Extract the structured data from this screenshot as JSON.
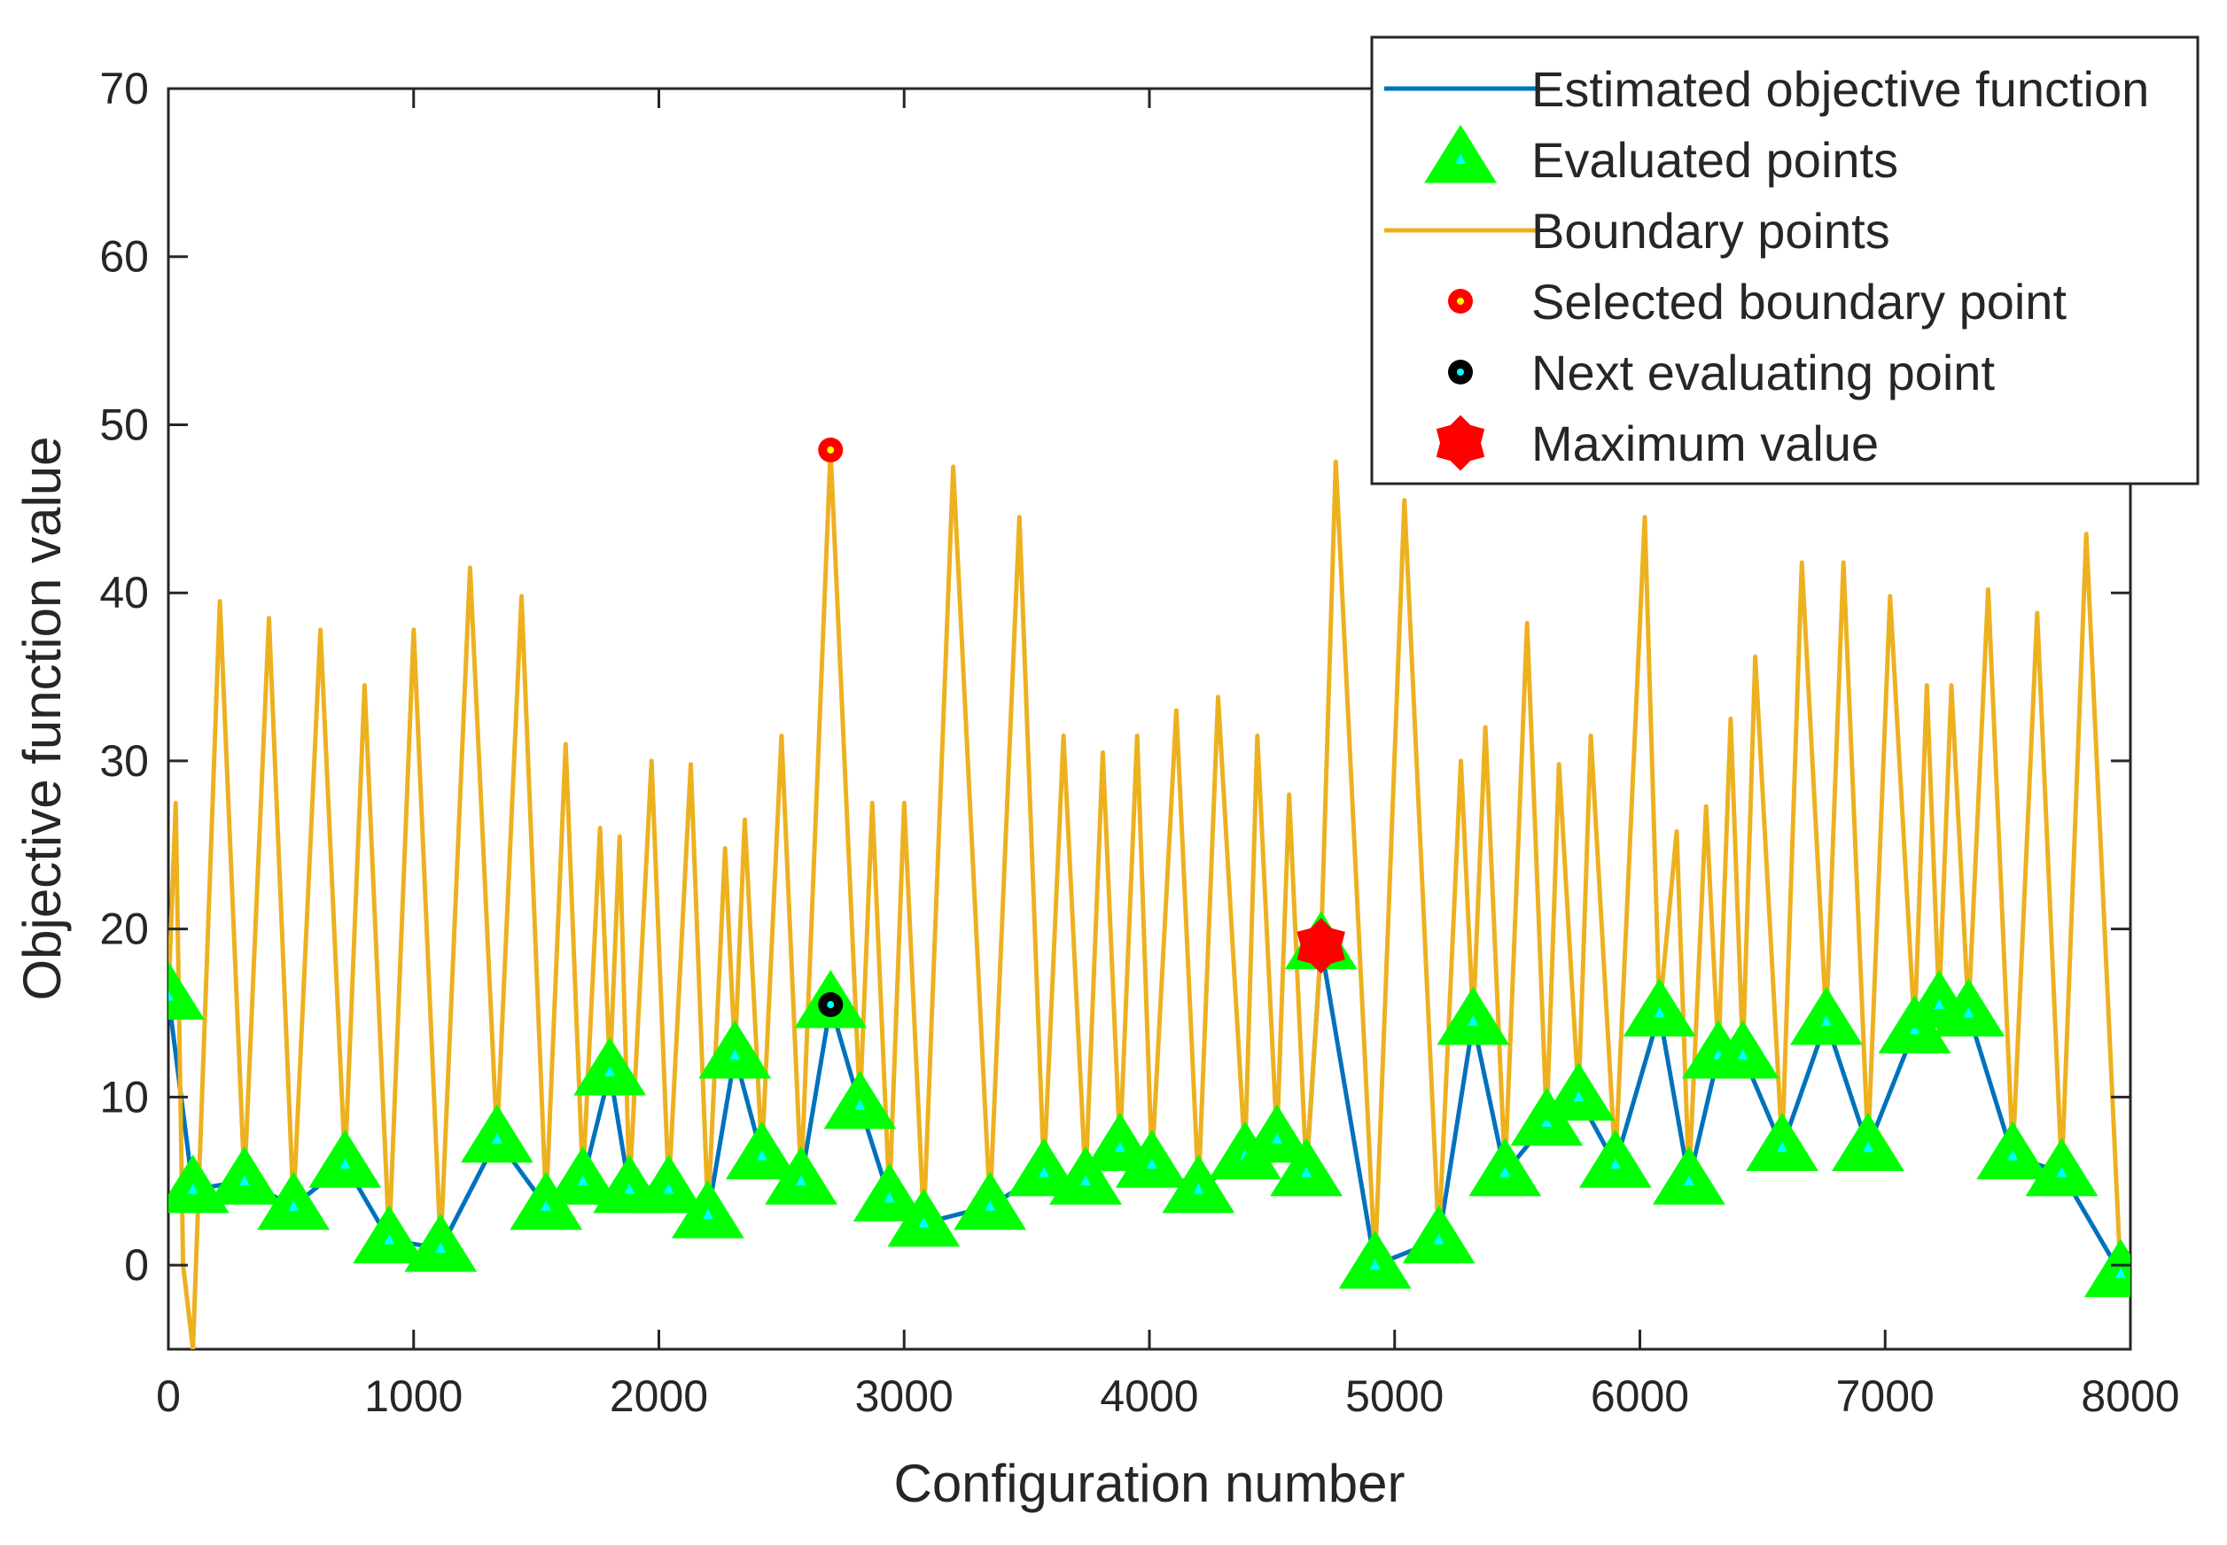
{
  "chart_data": {
    "type": "line",
    "xlabel": "Configuration number",
    "ylabel": "Objective function value",
    "xlim": [
      0,
      8000
    ],
    "ylim": [
      -5,
      70
    ],
    "xticks": [
      0,
      1000,
      2000,
      3000,
      4000,
      5000,
      6000,
      7000,
      8000
    ],
    "yticks": [
      0,
      10,
      20,
      30,
      40,
      50,
      60,
      70
    ],
    "grid": false,
    "legend_position": "top-right",
    "colors": {
      "estimated": "#0072BD",
      "evaluated_fill": "#00FF00",
      "evaluated_center": "#00FFFF",
      "boundary": "#EDB120",
      "selected": "#FF0000",
      "next": "#000000",
      "maximum": "#FF0000",
      "axis": "#262626"
    },
    "series": [
      {
        "name": "Estimated objective function",
        "type": "line",
        "x": [
          0,
          100,
          310,
          510,
          720,
          900,
          1110,
          1340,
          1540,
          1690,
          1800,
          1880,
          2040,
          2200,
          2310,
          2420,
          2580,
          2700,
          2820,
          2940,
          3080,
          3350,
          3570,
          3740,
          3880,
          4010,
          4200,
          4390,
          4520,
          4640,
          4700,
          4920,
          5180,
          5320,
          5450,
          5620,
          5750,
          5900,
          6080,
          6200,
          6320,
          6420,
          6580,
          6760,
          6930,
          7120,
          7220,
          7340,
          7520,
          7720,
          7960
        ],
        "y": [
          16,
          4.5,
          5,
          3.5,
          6,
          1.5,
          1,
          7.5,
          3.5,
          5,
          11.5,
          4.5,
          4.5,
          3,
          12.5,
          6.5,
          5,
          15.5,
          9.5,
          4,
          2.5,
          3.5,
          5.5,
          5,
          7,
          6,
          4.5,
          6.5,
          7.5,
          5.5,
          19,
          0,
          1.5,
          14.5,
          5.5,
          8.5,
          10,
          6,
          15,
          5,
          12.5,
          12.5,
          7,
          14.5,
          7,
          14,
          15.5,
          15,
          6.5,
          5.5,
          -0.5
        ]
      },
      {
        "name": "Evaluated points",
        "type": "scatter",
        "marker": "triangle",
        "x": [
          0,
          100,
          310,
          510,
          720,
          900,
          1110,
          1340,
          1540,
          1690,
          1800,
          1880,
          2040,
          2200,
          2310,
          2420,
          2580,
          2700,
          2820,
          2940,
          3080,
          3350,
          3570,
          3740,
          3880,
          4010,
          4200,
          4390,
          4520,
          4640,
          4700,
          4920,
          5180,
          5320,
          5450,
          5620,
          5750,
          5900,
          6080,
          6200,
          6320,
          6420,
          6580,
          6760,
          6930,
          7120,
          7220,
          7340,
          7520,
          7720,
          7960
        ],
        "y": [
          16,
          4.5,
          5,
          3.5,
          6,
          1.5,
          1,
          7.5,
          3.5,
          5,
          11.5,
          4.5,
          4.5,
          3,
          12.5,
          6.5,
          5,
          15.5,
          9.5,
          4,
          2.5,
          3.5,
          5.5,
          5,
          7,
          6,
          4.5,
          6.5,
          7.5,
          5.5,
          19,
          0,
          1.5,
          14.5,
          5.5,
          8.5,
          10,
          6,
          15,
          5,
          12.5,
          12.5,
          7,
          14.5,
          7,
          14,
          15.5,
          15,
          6.5,
          5.5,
          -0.5
        ]
      },
      {
        "name": "Boundary points",
        "type": "line",
        "x": [
          0,
          30,
          60,
          100,
          210,
          310,
          410,
          510,
          620,
          720,
          800,
          900,
          1000,
          1110,
          1230,
          1340,
          1440,
          1540,
          1620,
          1690,
          1760,
          1800,
          1840,
          1880,
          1970,
          2040,
          2130,
          2200,
          2270,
          2310,
          2350,
          2420,
          2500,
          2580,
          2700,
          2820,
          2870,
          2940,
          3000,
          3080,
          3200,
          3350,
          3470,
          3570,
          3650,
          3740,
          3810,
          3880,
          3950,
          4010,
          4110,
          4200,
          4280,
          4390,
          4440,
          4520,
          4570,
          4640,
          4700,
          4760,
          4920,
          5040,
          5180,
          5270,
          5320,
          5370,
          5450,
          5540,
          5620,
          5670,
          5750,
          5800,
          5900,
          6020,
          6080,
          6150,
          6200,
          6270,
          6320,
          6370,
          6420,
          6470,
          6580,
          6660,
          6760,
          6830,
          6930,
          7020,
          7120,
          7170,
          7220,
          7270,
          7340,
          7420,
          7520,
          7620,
          7720,
          7820,
          7960
        ],
        "y": [
          16,
          27.5,
          0,
          -5,
          39.5,
          5,
          38.5,
          3.5,
          37.8,
          6,
          34.5,
          1.5,
          37.8,
          1,
          41.5,
          7.5,
          39.8,
          3.5,
          31,
          5,
          26,
          11.5,
          25.5,
          4.5,
          30,
          4.5,
          29.8,
          3,
          24.8,
          12.5,
          26.5,
          6.5,
          31.5,
          5,
          48.5,
          9.5,
          27.5,
          4,
          27.5,
          2.5,
          47.5,
          3.5,
          44.5,
          5.5,
          31.5,
          5,
          30.5,
          7,
          31.5,
          6,
          33,
          4.5,
          33.8,
          6.5,
          31.5,
          7.5,
          28,
          5.5,
          19,
          47.8,
          0,
          45.5,
          1.5,
          30,
          14.5,
          32,
          5.5,
          38.2,
          8.5,
          29.8,
          10,
          31.5,
          6,
          44.5,
          15,
          25.8,
          5,
          27.3,
          12.5,
          32.5,
          12.5,
          36.2,
          7,
          41.8,
          14.5,
          41.8,
          7,
          39.8,
          14,
          34.5,
          15.5,
          34.5,
          15,
          40.2,
          6.5,
          38.8,
          5.5,
          43.5,
          -0.5
        ]
      },
      {
        "name": "Selected boundary point",
        "type": "scatter",
        "marker": "circle",
        "x": [
          2700
        ],
        "y": [
          48.5
        ]
      },
      {
        "name": "Next evaluating point",
        "type": "scatter",
        "marker": "circle",
        "x": [
          2700
        ],
        "y": [
          15.5
        ]
      },
      {
        "name": "Maximum value",
        "type": "scatter",
        "marker": "hexagram",
        "x": [
          4700
        ],
        "y": [
          19
        ]
      }
    ]
  }
}
